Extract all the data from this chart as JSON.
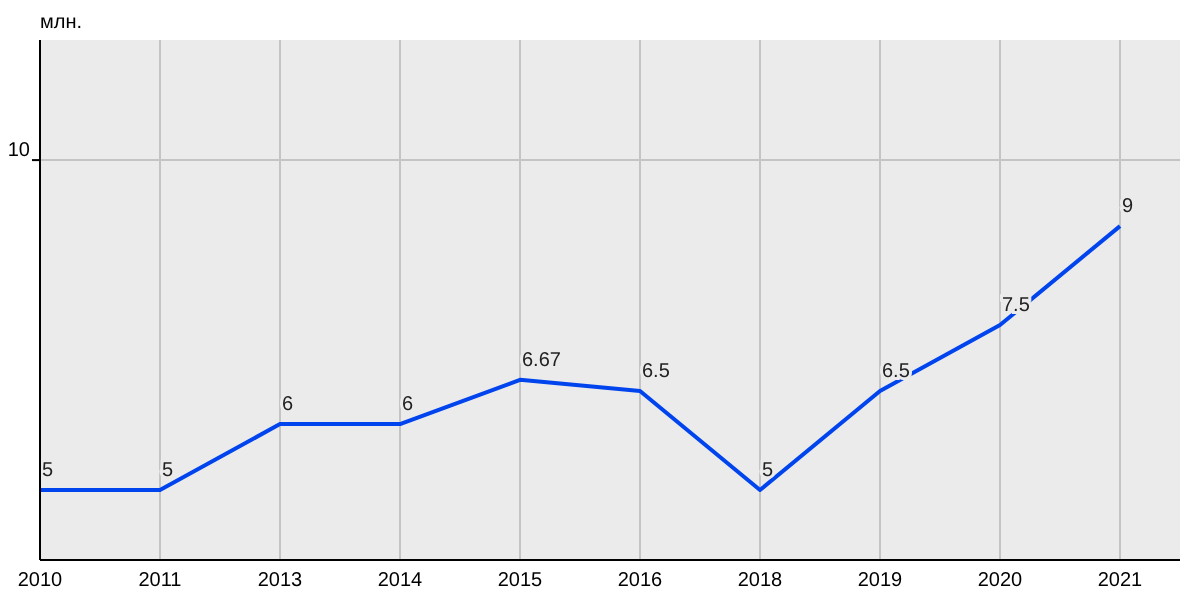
{
  "chart_data": {
    "type": "line",
    "ylabel": "млн.",
    "categories": [
      "2010",
      "2011",
      "2013",
      "2014",
      "2015",
      "2016",
      "2018",
      "2019",
      "2020",
      "2021"
    ],
    "series": [
      {
        "color": "#0044ee",
        "values": [
          5,
          5,
          6,
          6,
          6.67,
          6.5,
          5,
          6.5,
          7.5,
          9
        ]
      }
    ],
    "ylim": [
      3.94,
      11.82
    ],
    "ref_lines": [
      {
        "axis": "y",
        "value": 10,
        "label": "10",
        "color": "#c4c4c4"
      }
    ],
    "grid": "x",
    "data_labels": true,
    "marker": "none",
    "line_style": "solid"
  }
}
